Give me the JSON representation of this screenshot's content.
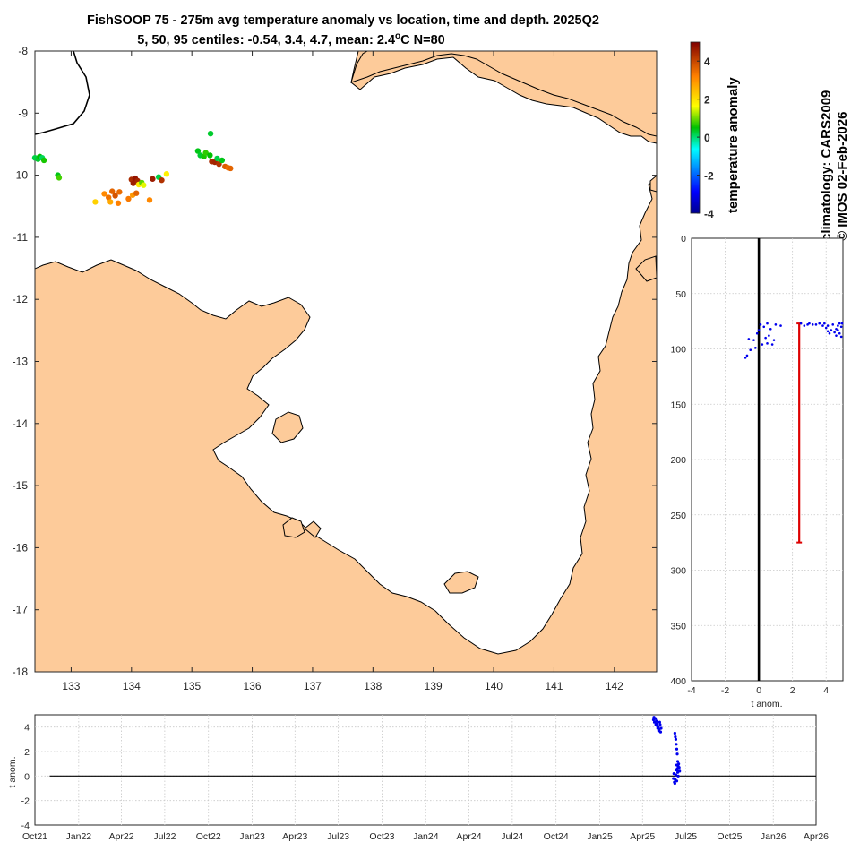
{
  "title": {
    "line1": "FishSOOP 75 - 275m avg temperature anomaly vs location, time and depth. 2025Q2",
    "line2_prefix": "5, 50, 95 centiles: -0.54, 3.4, 4.7, mean: 2.4",
    "line2_deg": "o",
    "line2_suffix": "C N=80"
  },
  "side_text": {
    "climatology": "climatology: CARS2009",
    "credit": "© IMOS 02-Feb-2026"
  },
  "colors": {
    "land": "#FDCB9A",
    "sea": "#FFFFFF",
    "coastline": "#000000",
    "profile_points": "#0000EE",
    "mean_bar": "#DD0000"
  },
  "chart_data": [
    {
      "type": "scatter",
      "name": "map",
      "xlim": [
        132.4,
        142.7
      ],
      "ylim": [
        -18,
        -8
      ],
      "xticks": [
        133,
        134,
        135,
        136,
        137,
        138,
        139,
        140,
        141,
        142
      ],
      "yticks": [
        -8,
        -9,
        -10,
        -11,
        -12,
        -13,
        -14,
        -15,
        -16,
        -17,
        -18
      ],
      "points": [
        {
          "lon": 132.4,
          "lat": -9.72,
          "v": 0.2
        },
        {
          "lon": 132.45,
          "lat": -9.74,
          "v": 0.3
        },
        {
          "lon": 132.48,
          "lat": -9.7,
          "v": 0.5
        },
        {
          "lon": 132.52,
          "lat": -9.72,
          "v": 0.1
        },
        {
          "lon": 132.55,
          "lat": -9.76,
          "v": 0.6
        },
        {
          "lon": 132.78,
          "lat": -10.0,
          "v": 0.4
        },
        {
          "lon": 132.8,
          "lat": -10.04,
          "v": 0.8
        },
        {
          "lon": 133.4,
          "lat": -10.43,
          "v": 2.2
        },
        {
          "lon": 133.55,
          "lat": -10.3,
          "v": 3.1
        },
        {
          "lon": 133.62,
          "lat": -10.36,
          "v": 3.4
        },
        {
          "lon": 133.65,
          "lat": -10.43,
          "v": 2.7
        },
        {
          "lon": 133.68,
          "lat": -10.26,
          "v": 3.6
        },
        {
          "lon": 133.73,
          "lat": -10.33,
          "v": 3.8
        },
        {
          "lon": 133.78,
          "lat": -10.45,
          "v": 3.2
        },
        {
          "lon": 133.8,
          "lat": -10.27,
          "v": 3.5
        },
        {
          "lon": 133.95,
          "lat": -10.38,
          "v": 3.3
        },
        {
          "lon": 134.02,
          "lat": -10.32,
          "v": 2.9
        },
        {
          "lon": 134.08,
          "lat": -10.29,
          "v": 3.6
        },
        {
          "lon": 134.0,
          "lat": -10.07,
          "v": 4.4
        },
        {
          "lon": 134.03,
          "lat": -10.13,
          "v": 4.6
        },
        {
          "lon": 134.06,
          "lat": -10.05,
          "v": 4.7
        },
        {
          "lon": 134.1,
          "lat": -10.09,
          "v": 4.5
        },
        {
          "lon": 134.12,
          "lat": -10.15,
          "v": 1.9
        },
        {
          "lon": 134.17,
          "lat": -10.12,
          "v": 0.9
        },
        {
          "lon": 134.2,
          "lat": -10.16,
          "v": 1.5
        },
        {
          "lon": 134.3,
          "lat": -10.4,
          "v": 3.1
        },
        {
          "lon": 134.35,
          "lat": -10.06,
          "v": 4.6
        },
        {
          "lon": 134.45,
          "lat": -10.03,
          "v": 0.2
        },
        {
          "lon": 134.5,
          "lat": -10.08,
          "v": 4.3
        },
        {
          "lon": 134.58,
          "lat": -9.98,
          "v": 1.8
        },
        {
          "lon": 135.1,
          "lat": -9.61,
          "v": 0.4
        },
        {
          "lon": 135.14,
          "lat": -9.68,
          "v": 0.3
        },
        {
          "lon": 135.2,
          "lat": -9.7,
          "v": 0.6
        },
        {
          "lon": 135.23,
          "lat": -9.64,
          "v": 0.7
        },
        {
          "lon": 135.3,
          "lat": -9.68,
          "v": 0.5
        },
        {
          "lon": 135.33,
          "lat": -9.78,
          "v": 4.4
        },
        {
          "lon": 135.38,
          "lat": -9.79,
          "v": 4.5
        },
        {
          "lon": 135.42,
          "lat": -9.73,
          "v": 0.2
        },
        {
          "lon": 135.45,
          "lat": -9.82,
          "v": 4.3
        },
        {
          "lon": 135.5,
          "lat": -9.76,
          "v": 0.4
        },
        {
          "lon": 135.55,
          "lat": -9.86,
          "v": 3.7
        },
        {
          "lon": 135.6,
          "lat": -9.88,
          "v": 3.5
        },
        {
          "lon": 135.64,
          "lat": -9.89,
          "v": 3.6
        },
        {
          "lon": 135.31,
          "lat": -9.33,
          "v": 0.3
        }
      ]
    },
    {
      "type": "scatter",
      "name": "depth_profile",
      "xlabel": "t anom.",
      "xlim": [
        -4,
        5
      ],
      "ylim": [
        0,
        400
      ],
      "xticks": [
        -4,
        -2,
        0,
        2,
        4
      ],
      "yticks": [
        0,
        50,
        100,
        150,
        200,
        250,
        300,
        350,
        400
      ],
      "zero_line": 0,
      "mean_bar": {
        "x": 2.4,
        "from": 77,
        "to": 275
      },
      "points": [
        [
          -0.3,
          92
        ],
        [
          -0.6,
          91
        ],
        [
          -0.8,
          108
        ],
        [
          -0.7,
          106
        ],
        [
          -0.5,
          101
        ],
        [
          -0.2,
          99
        ],
        [
          0.0,
          83
        ],
        [
          0.1,
          78
        ],
        [
          0.3,
          80
        ],
        [
          0.5,
          95
        ],
        [
          0.8,
          96
        ],
        [
          0.4,
          90
        ],
        [
          0.6,
          88
        ],
        [
          1.0,
          78
        ],
        [
          1.3,
          79
        ],
        [
          0.2,
          96
        ],
        [
          0.7,
          82
        ],
        [
          -0.1,
          86
        ],
        [
          0.9,
          92
        ],
        [
          0.5,
          77
        ],
        [
          2.5,
          77
        ],
        [
          2.9,
          78
        ],
        [
          3.2,
          78
        ],
        [
          3.6,
          77
        ],
        [
          3.9,
          77
        ],
        [
          4.1,
          79
        ],
        [
          4.3,
          83
        ],
        [
          4.5,
          85
        ],
        [
          4.6,
          82
        ],
        [
          4.7,
          79
        ],
        [
          4.8,
          86
        ],
        [
          4.9,
          89
        ],
        [
          3.4,
          78
        ],
        [
          4.0,
          81
        ],
        [
          4.4,
          78
        ],
        [
          4.2,
          86
        ],
        [
          4.6,
          88
        ],
        [
          4.8,
          77
        ],
        [
          3.0,
          77
        ],
        [
          2.7,
          79
        ],
        [
          4.95,
          77
        ],
        [
          4.7,
          83
        ],
        [
          4.9,
          80
        ],
        [
          4.1,
          84
        ],
        [
          3.8,
          79
        ]
      ]
    },
    {
      "type": "scatter",
      "name": "time_series",
      "ylabel": "t anom.",
      "ylim": [
        -4,
        5
      ],
      "yticks": [
        -4,
        -2,
        0,
        2,
        4
      ],
      "xticks": [
        "Oct21",
        "Jan22",
        "Apr22",
        "Jul22",
        "Oct22",
        "Jan23",
        "Apr23",
        "Jul23",
        "Oct23",
        "Jan24",
        "Apr24",
        "Jul24",
        "Oct24",
        "Jan25",
        "Apr25",
        "Jul25",
        "Oct25",
        "Jan26",
        "Apr26"
      ],
      "zero_line": 0,
      "points": [
        [
          "2025-04-24",
          4.6
        ],
        [
          "2025-04-25",
          4.8
        ],
        [
          "2025-04-26",
          4.4
        ],
        [
          "2025-04-28",
          4.7
        ],
        [
          "2025-04-29",
          4.2
        ],
        [
          "2025-04-30",
          4.5
        ],
        [
          "2025-05-01",
          4.3
        ],
        [
          "2025-05-02",
          4.1
        ],
        [
          "2025-05-03",
          3.9
        ],
        [
          "2025-05-04",
          4.0
        ],
        [
          "2025-05-05",
          3.7
        ],
        [
          "2025-05-06",
          3.8
        ],
        [
          "2025-05-07",
          4.4
        ],
        [
          "2025-05-08",
          4.2
        ],
        [
          "2025-05-09",
          3.6
        ],
        [
          "2025-05-10",
          3.9
        ],
        [
          "2025-06-08",
          3.5
        ],
        [
          "2025-06-09",
          3.2
        ],
        [
          "2025-06-10",
          3.0
        ],
        [
          "2025-06-11",
          2.6
        ],
        [
          "2025-06-12",
          2.2
        ],
        [
          "2025-06-13",
          1.8
        ],
        [
          "2025-06-14",
          1.2
        ],
        [
          "2025-06-15",
          0.8
        ],
        [
          "2025-06-16",
          0.4
        ],
        [
          "2025-06-06",
          0.2
        ],
        [
          "2025-06-05",
          -0.2
        ],
        [
          "2025-06-07",
          -0.5
        ],
        [
          "2025-06-08",
          -0.6
        ],
        [
          "2025-06-09",
          -0.3
        ],
        [
          "2025-06-10",
          0.1
        ],
        [
          "2025-06-11",
          0.5
        ],
        [
          "2025-06-12",
          0.9
        ],
        [
          "2025-06-13",
          0.6
        ],
        [
          "2025-06-14",
          0.3
        ],
        [
          "2025-06-15",
          0.0
        ],
        [
          "2025-06-16",
          1.0
        ],
        [
          "2025-06-17",
          0.7
        ],
        [
          "2025-06-18",
          0.4
        ],
        [
          "2025-06-12",
          -0.4
        ]
      ]
    },
    {
      "type": "heatmap",
      "name": "colorbar",
      "label": "temperature anomaly",
      "clim": [
        -4,
        5
      ],
      "ticks": [
        -4,
        -2,
        0,
        2,
        4
      ]
    }
  ]
}
